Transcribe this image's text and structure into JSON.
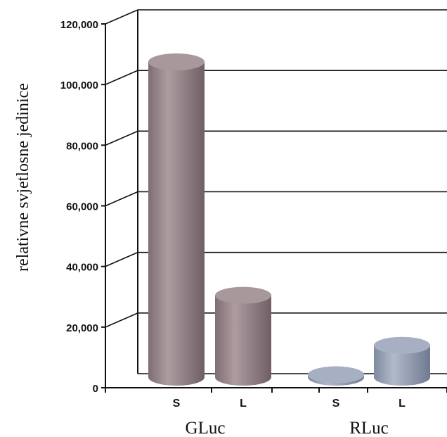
{
  "chart_data": {
    "type": "bar",
    "style": "3d-cylinder",
    "ylabel": "relativne svjetlosne jedinice",
    "ylim": [
      0,
      120000
    ],
    "yticks": [
      "0",
      "20,000",
      "40,000",
      "60,000",
      "80,000",
      "100,000",
      "120,000"
    ],
    "groups": [
      {
        "label": "GLuc",
        "color": "#9c8a8e",
        "bars": [
          {
            "label": "S",
            "value": 104000
          },
          {
            "label": "L",
            "value": 27000
          }
        ]
      },
      {
        "label": "RLuc",
        "color": "#99a3b5",
        "bars": [
          {
            "label": "S",
            "value": 800
          },
          {
            "label": "L",
            "value": 10500
          }
        ]
      }
    ],
    "grid": true
  }
}
